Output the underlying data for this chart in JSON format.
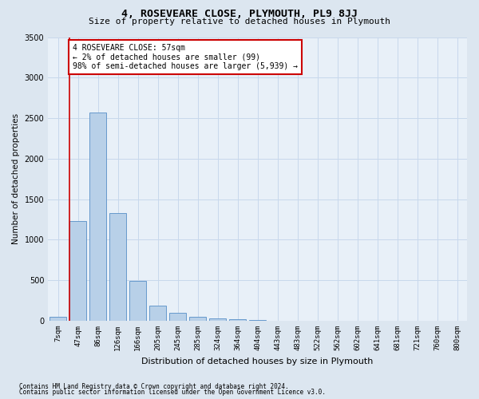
{
  "title1": "4, ROSEVEARE CLOSE, PLYMOUTH, PL9 8JJ",
  "title2": "Size of property relative to detached houses in Plymouth",
  "xlabel": "Distribution of detached houses by size in Plymouth",
  "ylabel": "Number of detached properties",
  "bar_labels": [
    "7sqm",
    "47sqm",
    "86sqm",
    "126sqm",
    "166sqm",
    "205sqm",
    "245sqm",
    "285sqm",
    "324sqm",
    "364sqm",
    "404sqm",
    "443sqm",
    "483sqm",
    "522sqm",
    "562sqm",
    "602sqm",
    "641sqm",
    "681sqm",
    "721sqm",
    "760sqm",
    "800sqm"
  ],
  "bar_values": [
    50,
    1230,
    2570,
    1330,
    490,
    185,
    100,
    50,
    30,
    20,
    10,
    5,
    5,
    0,
    0,
    0,
    0,
    0,
    0,
    0,
    0
  ],
  "bar_color": "#b8d0e8",
  "bar_edge_color": "#6699cc",
  "ylim": [
    0,
    3500
  ],
  "yticks": [
    0,
    500,
    1000,
    1500,
    2000,
    2500,
    3000,
    3500
  ],
  "property_line_x": 0.58,
  "annotation_text": "4 ROSEVEARE CLOSE: 57sqm\n← 2% of detached houses are smaller (99)\n98% of semi-detached houses are larger (5,939) →",
  "annotation_box_color": "#ffffff",
  "annotation_box_edge": "#cc0000",
  "footer1": "Contains HM Land Registry data © Crown copyright and database right 2024.",
  "footer2": "Contains public sector information licensed under the Open Government Licence v3.0.",
  "grid_color": "#c8d8ec",
  "background_color": "#dce6f0",
  "plot_bg_color": "#e8f0f8",
  "red_line_color": "#cc0000",
  "title1_fontsize": 9.5,
  "title2_fontsize": 8,
  "ylabel_fontsize": 7.5,
  "xlabel_fontsize": 8,
  "tick_fontsize": 6.5,
  "annotation_fontsize": 7,
  "footer_fontsize": 5.5
}
